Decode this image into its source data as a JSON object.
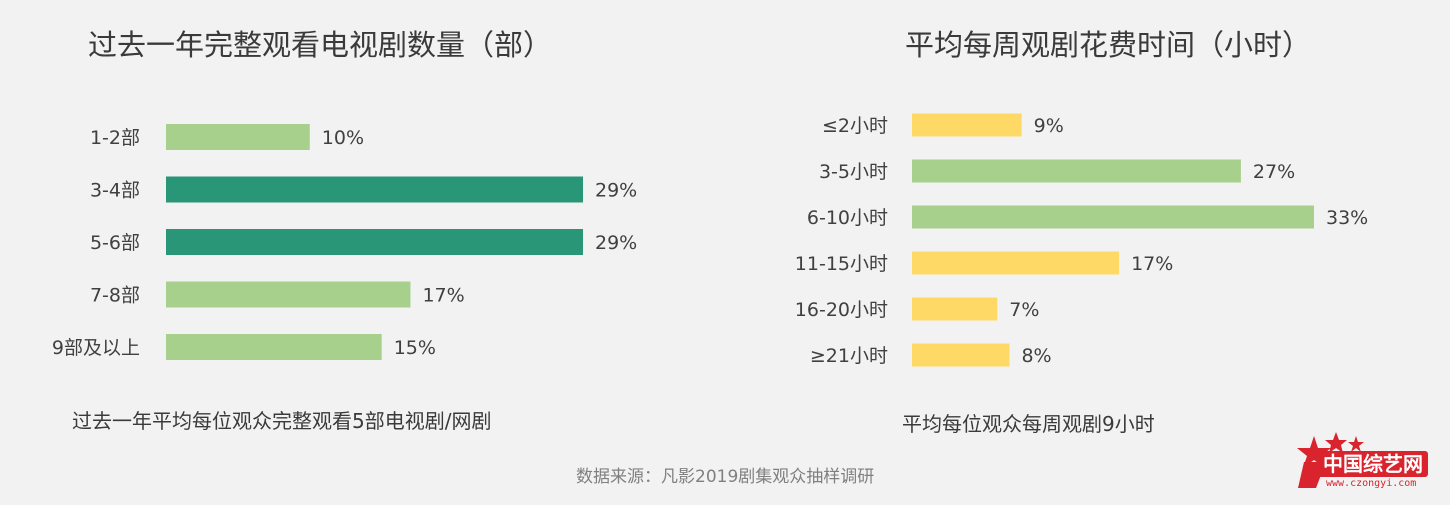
{
  "chart_data": [
    {
      "type": "bar",
      "orientation": "horizontal",
      "title": "过去一年完整观看电视剧数量（部）",
      "categories": [
        "1-2部",
        "3-4部",
        "5-6部",
        "7-8部",
        "9部及以上"
      ],
      "values": [
        10,
        29,
        29,
        17,
        15
      ],
      "value_labels": [
        "10%",
        "29%",
        "29%",
        "17%",
        "15%"
      ],
      "bar_colors": [
        "#a8d08d",
        "#2a9678",
        "#2a9678",
        "#a8d08d",
        "#a8d08d"
      ],
      "xlim": [
        0,
        29
      ],
      "grid": false,
      "summary": "过去一年平均每位观众完整观看5部电视剧/网剧"
    },
    {
      "type": "bar",
      "orientation": "horizontal",
      "title": "平均每周观剧花费时间（小时）",
      "categories": [
        "≤2小时",
        "3-5小时",
        "6-10小时",
        "11-15小时",
        "16-20小时",
        "≥21小时"
      ],
      "values": [
        9,
        27,
        33,
        17,
        7,
        8
      ],
      "value_labels": [
        "9%",
        "27%",
        "33%",
        "17%",
        "7%",
        "8%"
      ],
      "bar_colors": [
        "#ffd966",
        "#a8d08d",
        "#a8d08d",
        "#ffd966",
        "#ffd966",
        "#ffd966"
      ],
      "xlim": [
        0,
        33
      ],
      "grid": false,
      "summary": "平均每位观众每周观剧9小时"
    }
  ],
  "source": "数据来源：凡影2019剧集观众抽样调研",
  "logo": {
    "text": "中国综艺网",
    "url": "www.czongyi.com",
    "color": "#d9232d"
  }
}
